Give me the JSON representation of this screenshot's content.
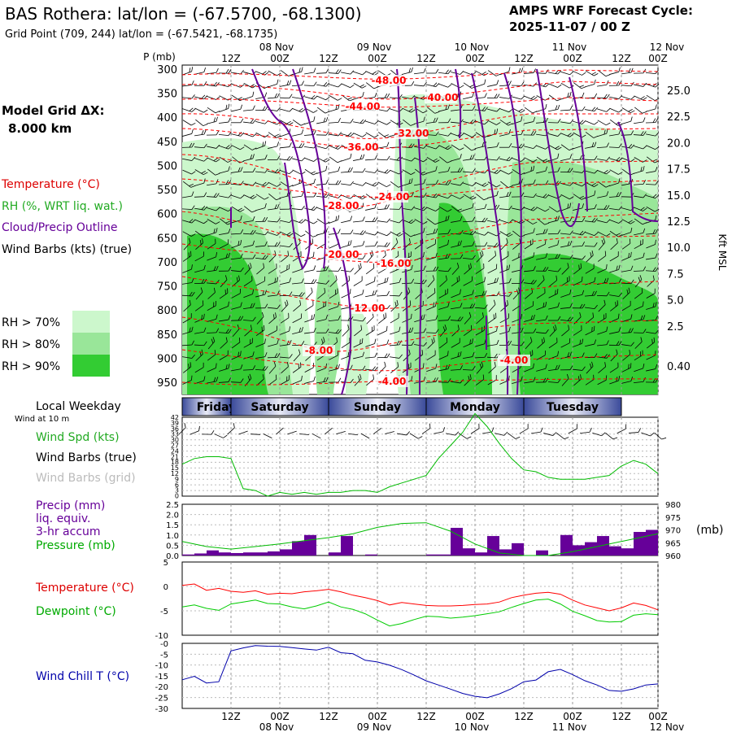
{
  "header": {
    "title": "BAS Rothera:  lat/lon = (-67.5700, -68.1300)",
    "grid_point": "Grid Point (709, 244) lat/lon = (-67.5421, -68.1735)",
    "cycle_label": "AMPS WRF Forecast Cycle:",
    "cycle_value": "2025-11-07 / 00  Z"
  },
  "model_grid": {
    "label": "Model Grid ΔX:",
    "value": "8.000 km"
  },
  "legend": {
    "temperature": "Temperature (°C)",
    "rh": "RH (%, WRT liq. wat.)",
    "cloud": "Cloud/Precip Outline",
    "wind": "Wind Barbs (kts) (true)",
    "rh_levels": [
      {
        "label": "RH > 70%",
        "color": "#ccf7cc"
      },
      {
        "label": "RH > 80%",
        "color": "#99e699"
      },
      {
        "label": "RH > 90%",
        "color": "#33cc33"
      }
    ]
  },
  "colors": {
    "temperature": "#ff0000",
    "rh": "#22bb22",
    "cloud": "#660099",
    "precip": "#660099",
    "pressure": "#00bb00",
    "dewpoint": "#00cc00",
    "windchill": "#0000aa",
    "wind": "#000000",
    "grid": "#999999",
    "weekday_band": "#3a4a9a"
  },
  "time_axis": {
    "time_labels": [
      "12Z",
      "00Z",
      "12Z",
      "00Z",
      "12Z",
      "00Z",
      "12Z",
      "00Z",
      "12Z",
      "00Z"
    ],
    "date_labels": [
      "08 Nov",
      "09 Nov",
      "10 Nov",
      "11 Nov",
      "12 Nov"
    ]
  },
  "weekday": {
    "label": "Local Weekday",
    "days": [
      "Friday",
      "Saturday",
      "Sunday",
      "Monday",
      "Tuesday"
    ]
  },
  "cross_section": {
    "pressure_label": "P (mb)",
    "pressure_ticks": [
      "300",
      "350",
      "400",
      "450",
      "500",
      "550",
      "600",
      "650",
      "700",
      "750",
      "800",
      "850",
      "900",
      "950"
    ],
    "height_ticks": [
      "25.0",
      "22.5",
      "20.0",
      "17.5",
      "15.0",
      "12.5",
      "10.0",
      "7.5",
      "5.0",
      "2.5",
      "0.40"
    ],
    "height_axis_label": "Kft MSL",
    "temp_contour_labels": [
      "-48.00",
      "-44.00",
      "-40.00",
      "-36.00",
      "-32.00",
      "-28.00",
      "-24.00",
      "-20.00",
      "-16.00",
      "-12.00",
      "-8.00",
      "-4.00",
      "-4.00"
    ]
  },
  "surface_wind": {
    "header": "Wind at 10 m",
    "speed_label": "Wind Spd (kts)",
    "barbs_true_label": "Wind Barbs (true)",
    "barbs_grid_label": "Wind Barbs (grid)",
    "y_ticks": [
      "42",
      "39",
      "36",
      "33",
      "30",
      "27",
      "24",
      "21",
      "18",
      "15",
      "12",
      "9",
      "6",
      "3",
      "0"
    ]
  },
  "precip_pressure": {
    "precip_label": "Precip (mm)",
    "precip_sub1": "liq. equiv.",
    "precip_sub2": "3-hr accum",
    "pressure_label": "Pressure (mb)",
    "left_ticks": [
      "2.5",
      "2.0",
      "1.5",
      "1.0",
      "0.5",
      "0.0"
    ],
    "right_ticks": [
      "980",
      "975",
      "970",
      "965",
      "960"
    ],
    "right_unit": "(mb)"
  },
  "temp_dew": {
    "temp_label": "Temperature (°C)",
    "dew_label": "Dewpoint (°C)",
    "ticks": [
      "5",
      "0",
      "-5",
      "-10"
    ]
  },
  "windchill": {
    "label": "Wind Chill T (°C)",
    "ticks": [
      "-0",
      "-5",
      "-10",
      "-15",
      "-20",
      "-25",
      "-30"
    ]
  },
  "chart_data": [
    {
      "type": "line",
      "title": "Wind Spd (kts) at 10 m",
      "x_hours": [
        0,
        3,
        6,
        9,
        12,
        15,
        18,
        21,
        24,
        27,
        30,
        33,
        36,
        39,
        42,
        45,
        48,
        51,
        54,
        57,
        60,
        63,
        66,
        69,
        72,
        75,
        78,
        81,
        84,
        87,
        90,
        93,
        96,
        99,
        102,
        105,
        108,
        111,
        114,
        117
      ],
      "series": [
        {
          "name": "Wind Spd (kts)",
          "values": [
            17,
            20,
            21,
            21,
            20,
            4,
            3,
            0,
            2,
            1,
            2,
            1,
            2,
            2,
            3,
            3,
            2,
            5,
            7,
            9,
            11,
            20,
            27,
            34,
            44,
            37,
            28,
            20,
            14,
            13,
            10,
            9,
            9,
            9,
            10,
            11,
            16,
            19,
            17,
            12
          ]
        }
      ],
      "ylim": [
        0,
        42
      ],
      "xlabel": "",
      "ylabel": "kts"
    },
    {
      "type": "bar",
      "title": "Precip (mm) liq. equiv. 3-hr accum",
      "x_hours": [
        0,
        3,
        6,
        9,
        12,
        15,
        18,
        21,
        24,
        27,
        30,
        33,
        36,
        39,
        42,
        45,
        48,
        51,
        54,
        57,
        60,
        63,
        66,
        69,
        72,
        75,
        78,
        81,
        84,
        87,
        90,
        93,
        96,
        99,
        102,
        105,
        108,
        111,
        114,
        117
      ],
      "series": [
        {
          "name": "Precip (mm)",
          "values": [
            0.05,
            0.1,
            0.25,
            0.15,
            0.12,
            0.15,
            0.15,
            0.2,
            0.3,
            0.7,
            1.0,
            0.0,
            0.15,
            0.95,
            0.0,
            0.05,
            0.0,
            0.0,
            0.0,
            0.0,
            0.05,
            0.05,
            1.35,
            0.35,
            0.15,
            0.95,
            0.3,
            0.6,
            0.0,
            0.25,
            0.0,
            1.0,
            0.5,
            0.65,
            0.95,
            0.45,
            0.35,
            1.15,
            1.25,
            0.0
          ]
        }
      ],
      "ylim": [
        0,
        2.5
      ],
      "ylabel": "mm"
    },
    {
      "type": "line",
      "title": "Pressure (mb)",
      "x_hours": [
        0,
        6,
        12,
        18,
        24,
        30,
        36,
        42,
        48,
        54,
        60,
        66,
        72,
        78,
        84,
        90,
        96,
        102,
        108,
        114,
        117
      ],
      "series": [
        {
          "name": "Pressure (mb)",
          "values": [
            965.5,
            963.5,
            962.5,
            963.5,
            964.5,
            965.8,
            967.0,
            968.5,
            971.0,
            972.5,
            972.8,
            969.5,
            964.5,
            961.0,
            960.0,
            960.0,
            961.5,
            963.5,
            965.5,
            967.5,
            968.5
          ]
        }
      ],
      "ylim": [
        960,
        980
      ]
    },
    {
      "type": "line",
      "title": "Temperature / Dewpoint (°C)",
      "x_hours": [
        0,
        3,
        6,
        9,
        12,
        15,
        18,
        21,
        24,
        27,
        30,
        33,
        36,
        39,
        42,
        45,
        48,
        51,
        54,
        57,
        60,
        63,
        66,
        69,
        72,
        75,
        78,
        81,
        84,
        87,
        90,
        93,
        96,
        99,
        102,
        105,
        108,
        111,
        114,
        117
      ],
      "series": [
        {
          "name": "Temperature (°C)",
          "values": [
            0.2,
            0.5,
            -0.8,
            -0.4,
            -1.0,
            -1.2,
            -0.9,
            -1.6,
            -1.4,
            -1.5,
            -1.1,
            -0.9,
            -0.6,
            -1.1,
            -1.8,
            -2.3,
            -2.9,
            -3.8,
            -3.3,
            -3.6,
            -3.9,
            -4.0,
            -4.0,
            -3.9,
            -3.7,
            -3.6,
            -3.2,
            -2.3,
            -1.8,
            -1.4,
            -1.2,
            -1.6,
            -2.8,
            -3.8,
            -4.4,
            -5.0,
            -4.4,
            -3.4,
            -3.9,
            -4.8
          ]
        },
        {
          "name": "Dewpoint (°C)",
          "values": [
            -4.2,
            -3.8,
            -4.5,
            -4.9,
            -3.6,
            -3.2,
            -2.8,
            -3.5,
            -3.6,
            -4.2,
            -4.6,
            -4.0,
            -3.2,
            -4.2,
            -4.7,
            -5.6,
            -6.9,
            -8.1,
            -7.6,
            -6.8,
            -6.1,
            -6.2,
            -6.5,
            -6.3,
            -6.0,
            -5.6,
            -5.2,
            -4.3,
            -3.5,
            -2.8,
            -2.6,
            -3.6,
            -5.1,
            -6.0,
            -7.0,
            -7.3,
            -7.2,
            -5.9,
            -5.6,
            -5.8
          ]
        }
      ],
      "ylim": [
        -10,
        5
      ]
    },
    {
      "type": "line",
      "title": "Wind Chill T (°C)",
      "x_hours": [
        0,
        3,
        6,
        9,
        12,
        15,
        18,
        21,
        24,
        27,
        30,
        33,
        36,
        39,
        42,
        45,
        48,
        51,
        54,
        57,
        60,
        63,
        66,
        69,
        72,
        75,
        78,
        81,
        84,
        87,
        90,
        93,
        96,
        99,
        102,
        105,
        108,
        111,
        114,
        117
      ],
      "series": [
        {
          "name": "Wind Chill T (°C)",
          "values": [
            -16.8,
            -15.2,
            -18.3,
            -17.7,
            -3.5,
            -2.1,
            -1.0,
            -1.3,
            -1.4,
            -2.0,
            -2.6,
            -3.1,
            -1.8,
            -4.3,
            -4.8,
            -7.8,
            -8.6,
            -10.1,
            -12.1,
            -14.6,
            -17.3,
            -19.2,
            -21.1,
            -23.1,
            -24.4,
            -25.1,
            -23.3,
            -20.9,
            -17.7,
            -16.9,
            -13.1,
            -12.0,
            -14.4,
            -17.2,
            -19.2,
            -21.7,
            -22.1,
            -21.0,
            -19.2,
            -18.7
          ]
        }
      ],
      "ylim": [
        -30,
        0
      ]
    }
  ]
}
